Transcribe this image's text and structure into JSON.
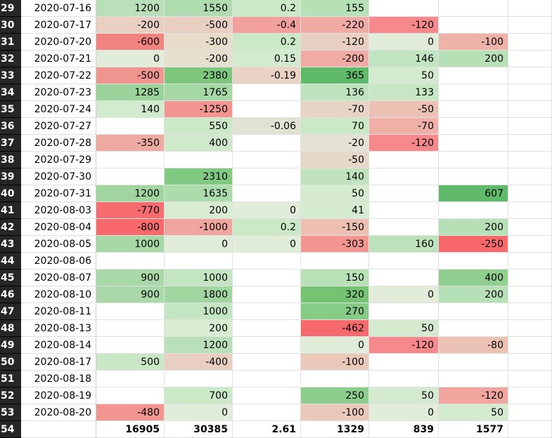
{
  "rows": [
    {
      "num": "29",
      "date": "2020-07-16",
      "cells": [
        {
          "v": "1200",
          "bg": "#b9e0b9"
        },
        {
          "v": "1550",
          "bg": "#afdcaf"
        },
        {
          "v": "0.2",
          "bg": "#cbe8c7"
        },
        {
          "v": "155",
          "bg": "#b6e0b6"
        },
        {
          "v": "",
          "bg": "#ffffff"
        },
        {
          "v": "",
          "bg": "#ffffff"
        }
      ]
    },
    {
      "num": "30",
      "date": "2020-07-17",
      "cells": [
        {
          "v": "-200",
          "bg": "#e9d0c3"
        },
        {
          "v": "-500",
          "bg": "#e9cfc2"
        },
        {
          "v": "-0.4",
          "bg": "#f2a09b"
        },
        {
          "v": "-220",
          "bg": "#f0aba4"
        },
        {
          "v": "-120",
          "bg": "#f7888b"
        },
        {
          "v": "",
          "bg": "#ffffff"
        }
      ]
    },
    {
      "num": "31",
      "date": "2020-07-20",
      "cells": [
        {
          "v": "-600",
          "bg": "#f2847f"
        },
        {
          "v": "-300",
          "bg": "#e6dcc9"
        },
        {
          "v": "0.2",
          "bg": "#cbe8c7"
        },
        {
          "v": "-120",
          "bg": "#e9cfc2"
        },
        {
          "v": "0",
          "bg": "#e1ecd9"
        },
        {
          "v": "-100",
          "bg": "#eeb2a8"
        }
      ]
    },
    {
      "num": "32",
      "date": "2020-07-21",
      "cells": [
        {
          "v": "0",
          "bg": "#e1ecd9"
        },
        {
          "v": "-200",
          "bg": "#e5e0cd"
        },
        {
          "v": "0.15",
          "bg": "#d2eacd"
        },
        {
          "v": "-200",
          "bg": "#f0aba4"
        },
        {
          "v": "146",
          "bg": "#c1e4c1"
        },
        {
          "v": "200",
          "bg": "#b6e0b6"
        }
      ]
    },
    {
      "num": "33",
      "date": "2020-07-22",
      "cells": [
        {
          "v": "-500",
          "bg": "#f0948f"
        },
        {
          "v": "2380",
          "bg": "#7cc77c"
        },
        {
          "v": "-0.19",
          "bg": "#ead2c5"
        },
        {
          "v": "365",
          "bg": "#5fba6a"
        },
        {
          "v": "50",
          "bg": "#d4ebcf"
        },
        {
          "v": "",
          "bg": "#ffffff"
        }
      ]
    },
    {
      "num": "34",
      "date": "2020-07-23",
      "cells": [
        {
          "v": "1285",
          "bg": "#9ad39a"
        },
        {
          "v": "1765",
          "bg": "#a5d8a5"
        },
        {
          "v": "",
          "bg": "#ffffff"
        },
        {
          "v": "136",
          "bg": "#bfe3bd"
        },
        {
          "v": "133",
          "bg": "#c6e6c4"
        },
        {
          "v": "",
          "bg": "#ffffff"
        }
      ]
    },
    {
      "num": "35",
      "date": "2020-07-24",
      "cells": [
        {
          "v": "140",
          "bg": "#d2eacd"
        },
        {
          "v": "-1250",
          "bg": "#f29590"
        },
        {
          "v": "",
          "bg": "#ffffff"
        },
        {
          "v": "-70",
          "bg": "#e8d4c5"
        },
        {
          "v": "-50",
          "bg": "#eec1b5"
        },
        {
          "v": "",
          "bg": "#ffffff"
        }
      ]
    },
    {
      "num": "36",
      "date": "2020-07-27",
      "cells": [
        {
          "v": "",
          "bg": "#ffffff"
        },
        {
          "v": "550",
          "bg": "#cbe8c7"
        },
        {
          "v": "-0.06",
          "bg": "#e1e2d2"
        },
        {
          "v": "70",
          "bg": "#cbe8c7"
        },
        {
          "v": "-70",
          "bg": "#f0b0a8"
        },
        {
          "v": "",
          "bg": "#ffffff"
        }
      ]
    },
    {
      "num": "37",
      "date": "2020-07-28",
      "cells": [
        {
          "v": "-350",
          "bg": "#eeaaa2"
        },
        {
          "v": "400",
          "bg": "#d0e9cb"
        },
        {
          "v": "",
          "bg": "#ffffff"
        },
        {
          "v": "-20",
          "bg": "#e4e3d3"
        },
        {
          "v": "-120",
          "bg": "#f7888b"
        },
        {
          "v": "",
          "bg": "#ffffff"
        }
      ]
    },
    {
      "num": "38",
      "date": "2020-07-29",
      "cells": [
        {
          "v": "",
          "bg": "#ffffff"
        },
        {
          "v": "",
          "bg": "#ffffff"
        },
        {
          "v": "",
          "bg": "#ffffff"
        },
        {
          "v": "-50",
          "bg": "#e6d8c8"
        },
        {
          "v": "",
          "bg": "#ffffff"
        },
        {
          "v": "",
          "bg": "#ffffff"
        }
      ]
    },
    {
      "num": "39",
      "date": "2020-07-30",
      "cells": [
        {
          "v": "",
          "bg": "#ffffff"
        },
        {
          "v": "2310",
          "bg": "#80c980"
        },
        {
          "v": "",
          "bg": "#ffffff"
        },
        {
          "v": "140",
          "bg": "#c0e3be"
        },
        {
          "v": "",
          "bg": "#ffffff"
        },
        {
          "v": "",
          "bg": "#ffffff"
        }
      ]
    },
    {
      "num": "40",
      "date": "2020-07-31",
      "cells": [
        {
          "v": "1200",
          "bg": "#a0d5a0"
        },
        {
          "v": "1635",
          "bg": "#acdbac"
        },
        {
          "v": "",
          "bg": "#ffffff"
        },
        {
          "v": "50",
          "bg": "#d4ebcf"
        },
        {
          "v": "",
          "bg": "#ffffff"
        },
        {
          "v": "607",
          "bg": "#5fba6a"
        }
      ]
    },
    {
      "num": "41",
      "date": "2020-08-03",
      "cells": [
        {
          "v": "-770",
          "bg": "#f76d6f"
        },
        {
          "v": "200",
          "bg": "#d8edd2"
        },
        {
          "v": "0",
          "bg": "#e1ecd9"
        },
        {
          "v": "41",
          "bg": "#d6ecd0"
        },
        {
          "v": "",
          "bg": "#ffffff"
        },
        {
          "v": "",
          "bg": "#ffffff"
        }
      ]
    },
    {
      "num": "42",
      "date": "2020-08-04",
      "cells": [
        {
          "v": "-800",
          "bg": "#f8696b"
        },
        {
          "v": "-1000",
          "bg": "#f0a59e"
        },
        {
          "v": "0.2",
          "bg": "#cbe8c7"
        },
        {
          "v": "-150",
          "bg": "#eec0b4"
        },
        {
          "v": "",
          "bg": "#ffffff"
        },
        {
          "v": "200",
          "bg": "#b6e0b6"
        }
      ]
    },
    {
      "num": "43",
      "date": "2020-08-05",
      "cells": [
        {
          "v": "1000",
          "bg": "#a6d8a6"
        },
        {
          "v": "0",
          "bg": "#e1ecd9"
        },
        {
          "v": "0",
          "bg": "#e1ecd9"
        },
        {
          "v": "-303",
          "bg": "#f29590"
        },
        {
          "v": "160",
          "bg": "#bde2bb"
        },
        {
          "v": "-250",
          "bg": "#f8696b"
        }
      ]
    },
    {
      "num": "44",
      "date": "2020-08-06",
      "cells": [
        {
          "v": "",
          "bg": "#ffffff"
        },
        {
          "v": "",
          "bg": "#ffffff"
        },
        {
          "v": "",
          "bg": "#ffffff"
        },
        {
          "v": "",
          "bg": "#ffffff"
        },
        {
          "v": "",
          "bg": "#ffffff"
        },
        {
          "v": "",
          "bg": "#ffffff"
        }
      ]
    },
    {
      "num": "45",
      "date": "2020-08-07",
      "cells": [
        {
          "v": "900",
          "bg": "#a9d9a9"
        },
        {
          "v": "1000",
          "bg": "#c3e5c1"
        },
        {
          "v": "",
          "bg": "#ffffff"
        },
        {
          "v": "150",
          "bg": "#b8e1b8"
        },
        {
          "v": "",
          "bg": "#ffffff"
        },
        {
          "v": "400",
          "bg": "#90cf90"
        }
      ]
    },
    {
      "num": "46",
      "date": "2020-08-10",
      "cells": [
        {
          "v": "900",
          "bg": "#a9d9a9"
        },
        {
          "v": "1800",
          "bg": "#a1d6a1"
        },
        {
          "v": "",
          "bg": "#ffffff"
        },
        {
          "v": "320",
          "bg": "#73c373"
        },
        {
          "v": "0",
          "bg": "#e1ecd9"
        },
        {
          "v": "200",
          "bg": "#b6e0b6"
        }
      ]
    },
    {
      "num": "47",
      "date": "2020-08-11",
      "cells": [
        {
          "v": "",
          "bg": "#ffffff"
        },
        {
          "v": "1000",
          "bg": "#c3e5c1"
        },
        {
          "v": "",
          "bg": "#ffffff"
        },
        {
          "v": "270",
          "bg": "#86cb86"
        },
        {
          "v": "",
          "bg": "#ffffff"
        },
        {
          "v": "",
          "bg": "#ffffff"
        }
      ]
    },
    {
      "num": "48",
      "date": "2020-08-13",
      "cells": [
        {
          "v": "",
          "bg": "#ffffff"
        },
        {
          "v": "200",
          "bg": "#d8edd2"
        },
        {
          "v": "",
          "bg": "#ffffff"
        },
        {
          "v": "-462",
          "bg": "#f8696b"
        },
        {
          "v": "50",
          "bg": "#d4ebcf"
        },
        {
          "v": "",
          "bg": "#ffffff"
        }
      ]
    },
    {
      "num": "49",
      "date": "2020-08-14",
      "cells": [
        {
          "v": "",
          "bg": "#ffffff"
        },
        {
          "v": "1200",
          "bg": "#b9e0b9"
        },
        {
          "v": "",
          "bg": "#ffffff"
        },
        {
          "v": "0",
          "bg": "#e1ecd9"
        },
        {
          "v": "-120",
          "bg": "#f7888b"
        },
        {
          "v": "-80",
          "bg": "#ecc2b4"
        }
      ]
    },
    {
      "num": "50",
      "date": "2020-08-17",
      "cells": [
        {
          "v": "500",
          "bg": "#c9e7c5"
        },
        {
          "v": "-400",
          "bg": "#e9cfc2"
        },
        {
          "v": "",
          "bg": "#ffffff"
        },
        {
          "v": "-100",
          "bg": "#eac9bb"
        },
        {
          "v": "",
          "bg": "#ffffff"
        },
        {
          "v": "",
          "bg": "#ffffff"
        }
      ]
    },
    {
      "num": "51",
      "date": "2020-08-18",
      "cells": [
        {
          "v": "",
          "bg": "#ffffff"
        },
        {
          "v": "",
          "bg": "#ffffff"
        },
        {
          "v": "",
          "bg": "#ffffff"
        },
        {
          "v": "",
          "bg": "#ffffff"
        },
        {
          "v": "",
          "bg": "#ffffff"
        },
        {
          "v": "",
          "bg": "#ffffff"
        }
      ]
    },
    {
      "num": "52",
      "date": "2020-08-19",
      "cells": [
        {
          "v": "",
          "bg": "#ffffff"
        },
        {
          "v": "700",
          "bg": "#cbe8c7"
        },
        {
          "v": "",
          "bg": "#ffffff"
        },
        {
          "v": "250",
          "bg": "#8ccd8c"
        },
        {
          "v": "50",
          "bg": "#d4ebcf"
        },
        {
          "v": "-120",
          "bg": "#f0a59e"
        }
      ]
    },
    {
      "num": "53",
      "date": "2020-08-20",
      "cells": [
        {
          "v": "-480",
          "bg": "#f29590"
        },
        {
          "v": "0",
          "bg": "#e1ecd9"
        },
        {
          "v": "",
          "bg": "#ffffff"
        },
        {
          "v": "-100",
          "bg": "#eac9bb"
        },
        {
          "v": "0",
          "bg": "#e1ecd9"
        },
        {
          "v": "50",
          "bg": "#d4ebcf"
        }
      ]
    }
  ],
  "total": {
    "num": "54",
    "date": "",
    "cells": [
      "16905",
      "30385",
      "2.61",
      "1329",
      "839",
      "1577"
    ]
  }
}
